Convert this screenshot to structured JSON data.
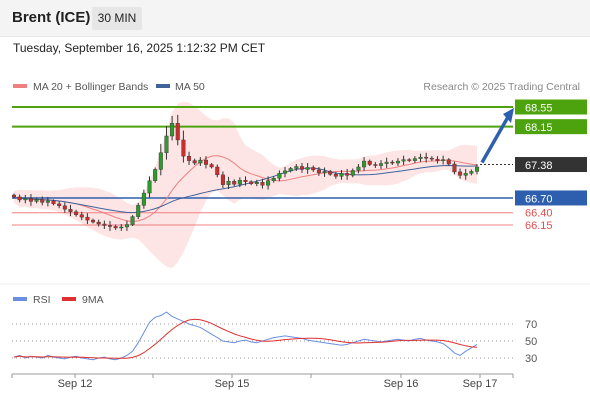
{
  "header": {
    "title": "Brent (ICE)",
    "timeframe": "30 MIN"
  },
  "timestamp": "Tuesday, September 16, 2025 1:12:32 PM CET",
  "legend": {
    "bb_label": "MA 20 + Bollinger Bands",
    "ma50_label": "MA 50",
    "copyright": "Research © 2025 Trading Central",
    "rsi_label": "RSI",
    "rsi_ma_label": "9MA"
  },
  "colors": {
    "resistance": "#4ca30d",
    "pivot": "#2e5fae",
    "support": "#f08080",
    "current": "#333333",
    "candle_up": "#2e9a2e",
    "candle_down": "#c83030",
    "bollinger_fill": "#fde0e0",
    "ma20": "#f08080",
    "ma50": "#41639b",
    "rsi": "#6a8fe0",
    "rsi_ma": "#e03030",
    "arrow": "#2e5fae"
  },
  "levels": {
    "r2": "68.55",
    "r1": "68.15",
    "current": "67.38",
    "pivot": "66.70",
    "s1": "66.40",
    "s2": "66.15"
  },
  "rsi_levels": [
    "70",
    "50",
    "30"
  ],
  "x_labels": [
    "Sep 12",
    "Sep 15",
    "Sep 16",
    "Sep 17"
  ],
  "chart_data": {
    "type": "candlestick",
    "title": "Brent (ICE)",
    "timeframe": "30 MIN",
    "y_range": [
      65.3,
      68.95
    ],
    "price_candles": {
      "approx_closes": [
        66.72,
        66.66,
        66.69,
        66.63,
        66.67,
        66.61,
        66.64,
        66.58,
        66.54,
        66.47,
        66.42,
        66.36,
        66.31,
        66.25,
        66.21,
        66.17,
        66.14,
        66.12,
        66.09,
        66.11,
        66.16,
        66.32,
        66.55,
        66.8,
        67.05,
        67.28,
        67.62,
        67.96,
        68.22,
        67.88,
        67.55,
        67.46,
        67.41,
        67.47,
        67.38,
        67.33,
        67.17,
        66.97,
        67.04,
        66.98,
        67.06,
        67.03,
        66.99,
        67.02,
        66.96,
        67.05,
        67.1,
        67.2,
        67.25,
        67.3,
        67.34,
        67.28,
        67.32,
        67.27,
        67.21,
        67.24,
        67.18,
        67.14,
        67.2,
        67.16,
        67.26,
        67.33,
        67.45,
        67.38,
        67.36,
        67.4,
        67.43,
        67.41,
        67.45,
        67.48,
        67.46,
        67.5,
        67.53,
        67.51,
        67.49,
        67.46,
        67.48,
        67.39,
        67.23,
        67.16,
        67.2,
        67.24,
        67.33
      ]
    },
    "levels": {
      "resistance": [
        68.55,
        68.15
      ],
      "current": 67.38,
      "pivot": 66.7,
      "support": [
        66.4,
        66.15
      ]
    },
    "indicators": [
      "MA 20 + Bollinger Bands",
      "MA 50"
    ],
    "rsi": {
      "levels": [
        70,
        50,
        30
      ],
      "approx_values": [
        31,
        33,
        30,
        32,
        31,
        30,
        33,
        31,
        30,
        29,
        31,
        32,
        30,
        29,
        28,
        30,
        31,
        29,
        28,
        30,
        33,
        38,
        48,
        60,
        72,
        78,
        80,
        84,
        79,
        76,
        73,
        70,
        68,
        66,
        62,
        58,
        54,
        50,
        49,
        48,
        50,
        51,
        49,
        48,
        50,
        52,
        54,
        55,
        56,
        55,
        54,
        53,
        51,
        50,
        49,
        48,
        47,
        46,
        45,
        46,
        48,
        50,
        52,
        51,
        50,
        49,
        50,
        51,
        52,
        51,
        50,
        52,
        53,
        51,
        50,
        49,
        47,
        42,
        36,
        33,
        38,
        42,
        46
      ]
    }
  }
}
